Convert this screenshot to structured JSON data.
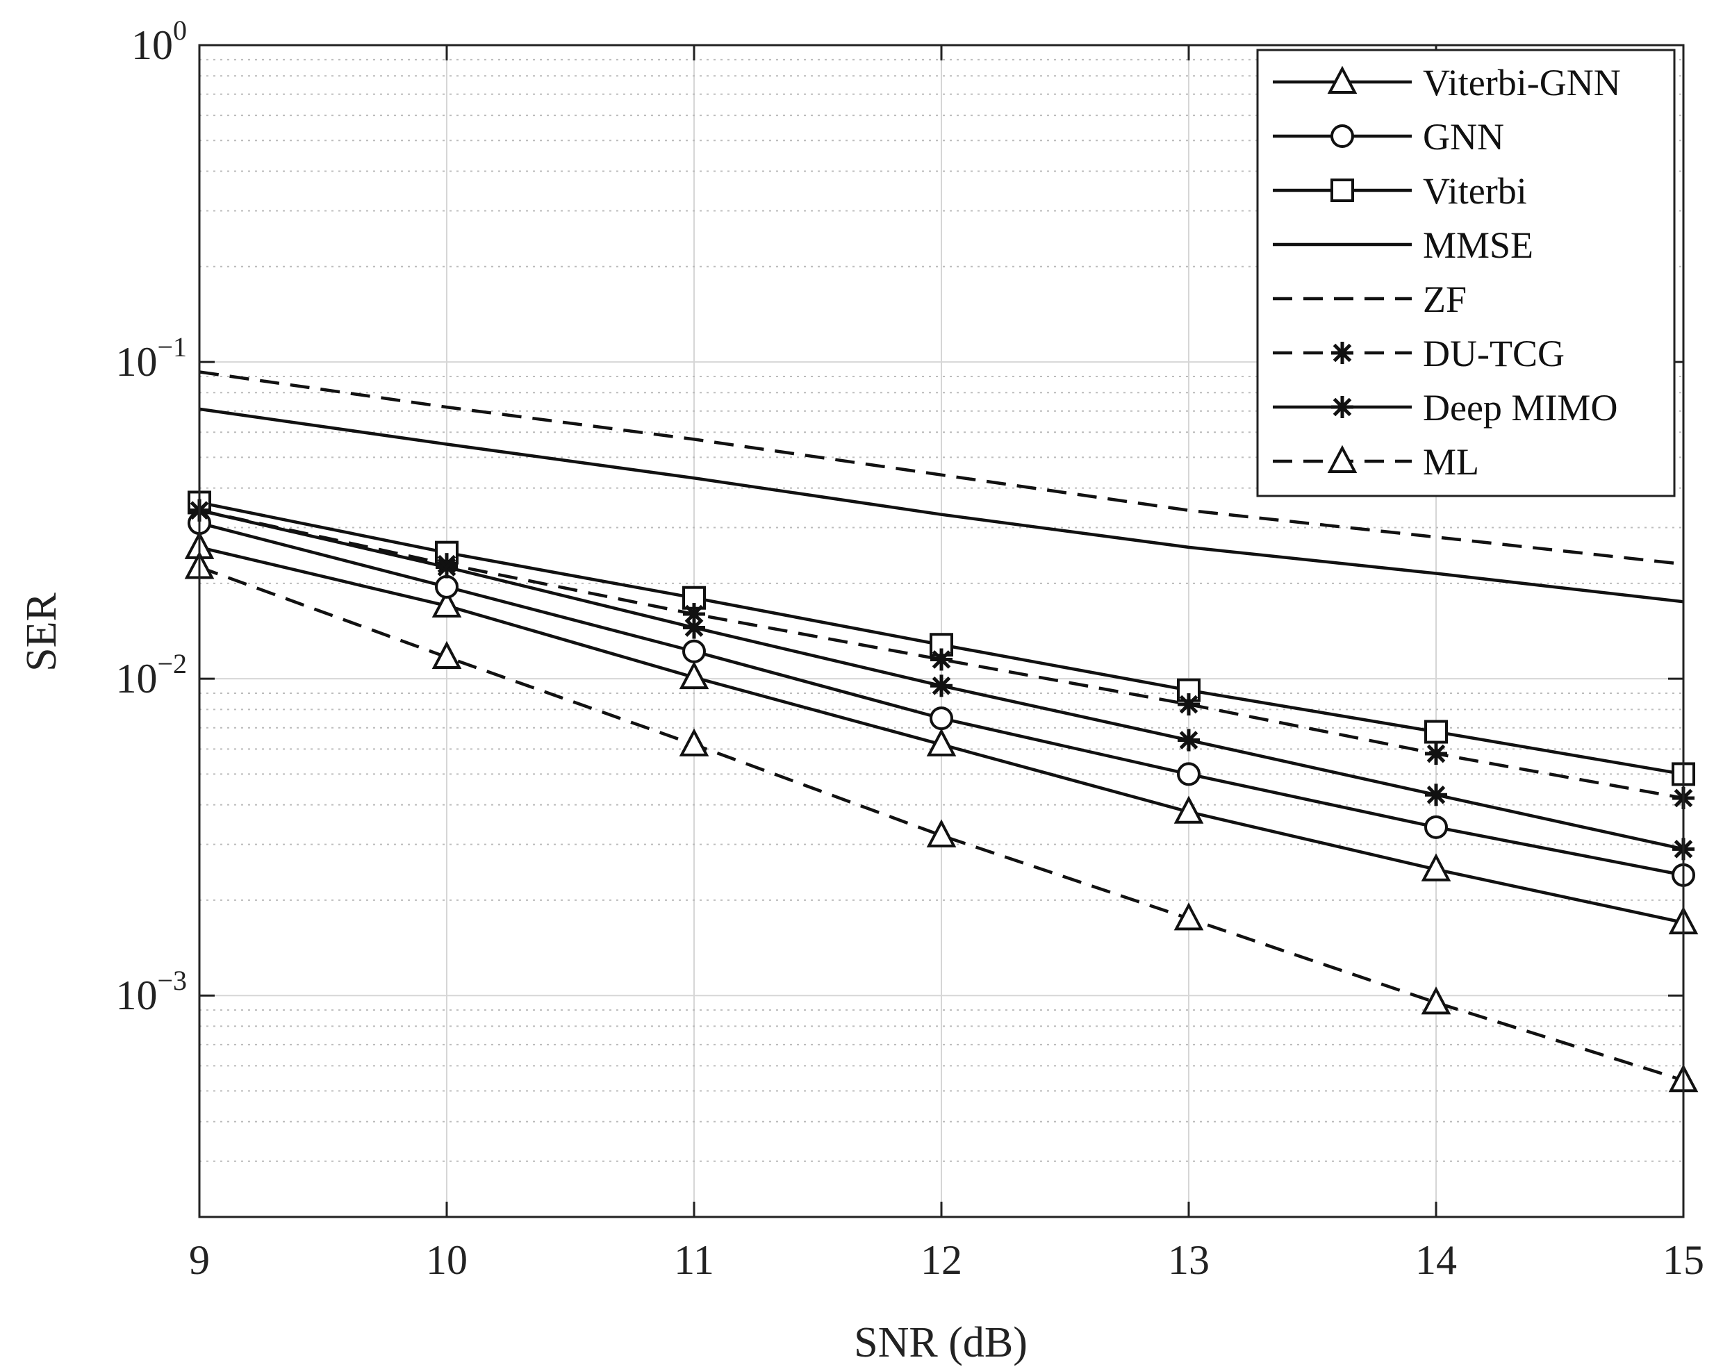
{
  "chart_data": {
    "type": "line",
    "title": "",
    "xlabel": "SNR (dB)",
    "ylabel": "SER",
    "x": [
      9,
      10,
      11,
      12,
      13,
      14,
      15
    ],
    "xlim": [
      9,
      15
    ],
    "ylim": [
      0.0002,
      1
    ],
    "yscale": "log",
    "grid": true,
    "x_tick_labels": [
      "9",
      "10",
      "11",
      "12",
      "13",
      "14",
      "15"
    ],
    "y_ticks": [
      {
        "value": 1,
        "base": "10",
        "exp": "0"
      },
      {
        "value": 0.1,
        "base": "10",
        "exp": "−1"
      },
      {
        "value": 0.01,
        "base": "10",
        "exp": "−2"
      },
      {
        "value": 0.001,
        "base": "10",
        "exp": "−3"
      }
    ],
    "legend_position": "top-right",
    "series": [
      {
        "name": "Viterbi-GNN",
        "style": "solid",
        "marker": "triangle",
        "values": [
          0.026,
          0.017,
          0.0101,
          0.0062,
          0.0038,
          0.0025,
          0.0017
        ]
      },
      {
        "name": "GNN",
        "style": "solid",
        "marker": "circle",
        "values": [
          0.031,
          0.0195,
          0.0122,
          0.0075,
          0.005,
          0.0034,
          0.0024
        ]
      },
      {
        "name": "Viterbi",
        "style": "solid",
        "marker": "square",
        "values": [
          0.036,
          0.025,
          0.018,
          0.0128,
          0.0092,
          0.0068,
          0.005
        ]
      },
      {
        "name": "MMSE",
        "style": "solid",
        "marker": "none",
        "values": [
          0.071,
          0.055,
          0.043,
          0.033,
          0.026,
          0.0215,
          0.0175
        ]
      },
      {
        "name": "ZF",
        "style": "dashed",
        "marker": "none",
        "values": [
          0.093,
          0.072,
          0.057,
          0.044,
          0.034,
          0.028,
          0.023
        ]
      },
      {
        "name": "DU-TCG",
        "style": "dashed",
        "marker": "asterisk",
        "values": [
          0.034,
          0.023,
          0.016,
          0.0115,
          0.0083,
          0.0058,
          0.0042
        ]
      },
      {
        "name": "Deep MIMO",
        "style": "solid",
        "marker": "asterisk",
        "values": [
          0.034,
          0.0225,
          0.0145,
          0.0095,
          0.0064,
          0.0043,
          0.0029
        ]
      },
      {
        "name": "ML",
        "style": "dashed",
        "marker": "triangle",
        "values": [
          0.0225,
          0.0117,
          0.0062,
          0.0032,
          0.00175,
          0.00095,
          0.00054
        ]
      }
    ]
  }
}
